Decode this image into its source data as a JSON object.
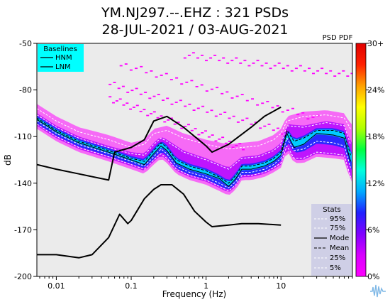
{
  "chart_data": {
    "type": "heatmap",
    "title_line1": "YM.NJ297.--.EHZ : 321 PSDs",
    "title_line2": "28-JUL-2021 / 03-AUG-2021",
    "xlabel": "Frequency (Hz)",
    "ylabel": "dB",
    "xscale": "log",
    "xlim": [
      0.0055,
      90
    ],
    "ylim": [
      -200,
      -50
    ],
    "xticks": [
      0.01,
      0.1,
      1,
      10
    ],
    "xtick_labels": [
      "0.01",
      "0.1",
      "1",
      "10"
    ],
    "yticks": [
      -200,
      -170,
      -140,
      -110,
      -80,
      -50
    ],
    "ytick_labels": [
      "-200",
      "-170",
      "-140",
      "-110",
      "-80",
      "-50"
    ],
    "baselines_legend": {
      "title": "Baselines",
      "entries": [
        "HNM",
        "LNM"
      ],
      "placement": "top-left",
      "background": "#00ffff"
    },
    "stats_legend": {
      "title": "Stats",
      "entries": [
        "95%",
        "75%",
        "Mode",
        "Mean",
        "25%",
        "5%"
      ],
      "placement": "bottom-right",
      "background": "#cfcfe6"
    },
    "colorbar": {
      "label": "PSD PDF",
      "ticks": [
        "0%",
        "6%",
        "12%",
        "18%",
        "24%",
        "30+"
      ],
      "min": 0,
      "max": 30,
      "colors": [
        "#ff00ff",
        "#d800ff",
        "#8000ff",
        "#2020ff",
        "#00aaff",
        "#00ffdd",
        "#00ff40",
        "#b0ff00",
        "#ffff00",
        "#ffa000",
        "#ff2000",
        "#e00000"
      ]
    },
    "plot_background": "#ebebeb",
    "series": [
      {
        "name": "HNM",
        "color": "#000000",
        "x": [
          0.0055,
          0.01,
          0.02,
          0.05,
          0.06,
          0.1,
          0.15,
          0.2,
          0.3,
          0.5,
          1,
          1.2,
          2,
          4,
          6,
          10
        ],
        "y": [
          -128,
          -131,
          -134,
          -138,
          -120,
          -117,
          -112,
          -100,
          -97,
          -104,
          -116,
          -120,
          -115,
          -104,
          -97,
          -91
        ]
      },
      {
        "name": "LNM",
        "color": "#000000",
        "x": [
          0.0055,
          0.01,
          0.02,
          0.03,
          0.05,
          0.07,
          0.09,
          0.1,
          0.15,
          0.2,
          0.25,
          0.35,
          0.5,
          0.7,
          1,
          1.2,
          2,
          3,
          5,
          10
        ],
        "y": [
          -186,
          -186,
          -188,
          -186,
          -175,
          -160,
          -166,
          -164,
          -150,
          -144,
          -141,
          -141,
          -147,
          -158,
          -165,
          -168,
          -167,
          -166,
          -166,
          -167
        ]
      },
      {
        "name": "Mode",
        "x": [
          0.0055,
          0.01,
          0.02,
          0.05,
          0.1,
          0.15,
          0.2,
          0.25,
          0.3,
          0.4,
          0.6,
          1,
          1.5,
          2,
          2.5,
          3,
          4,
          6,
          8,
          10,
          12,
          15,
          20,
          30,
          50,
          70,
          85
        ],
        "y": [
          -99,
          -107,
          -114,
          -120,
          -125,
          -128,
          -121,
          -116,
          -119,
          -127,
          -131,
          -134,
          -137,
          -142,
          -137,
          -131,
          -131,
          -129,
          -126,
          -122,
          -108,
          -117,
          -115,
          -108,
          -109,
          -111,
          -126
        ]
      },
      {
        "name": "Mean",
        "x": [
          0.0055,
          0.01,
          0.02,
          0.05,
          0.1,
          0.15,
          0.2,
          0.25,
          0.3,
          0.4,
          0.6,
          1,
          1.5,
          2,
          2.5,
          3,
          4,
          6,
          8,
          10,
          12,
          15,
          20,
          30,
          50,
          70,
          85
        ],
        "y": [
          -98,
          -106,
          -113,
          -119,
          -124,
          -126,
          -119,
          -114,
          -117,
          -125,
          -129,
          -132,
          -136,
          -140,
          -135,
          -129,
          -129,
          -127,
          -124,
          -120,
          -106,
          -113,
          -111,
          -106,
          -106,
          -108,
          -122
        ]
      },
      {
        "name": "95%",
        "x": [
          0.0055,
          0.01,
          0.02,
          0.05,
          0.1,
          0.15,
          0.2,
          0.3,
          0.5,
          1,
          2,
          3,
          5,
          8,
          10,
          12,
          20,
          40,
          70,
          85
        ],
        "y": [
          -92,
          -100,
          -107,
          -112,
          -117,
          -115,
          -108,
          -106,
          -111,
          -115,
          -118,
          -117,
          -116,
          -112,
          -108,
          -100,
          -97,
          -96,
          -98,
          -105
        ]
      },
      {
        "name": "75%",
        "x": [
          0.0055,
          0.01,
          0.02,
          0.05,
          0.1,
          0.15,
          0.2,
          0.25,
          0.3,
          0.5,
          1,
          2,
          3,
          5,
          8,
          10,
          12,
          20,
          40,
          70,
          85
        ],
        "y": [
          -96,
          -104,
          -111,
          -117,
          -121,
          -122,
          -115,
          -111,
          -113,
          -120,
          -125,
          -131,
          -124,
          -123,
          -119,
          -115,
          -103,
          -104,
          -101,
          -103,
          -115
        ]
      },
      {
        "name": "25%",
        "x": [
          0.0055,
          0.01,
          0.02,
          0.05,
          0.1,
          0.15,
          0.2,
          0.25,
          0.3,
          0.4,
          0.6,
          1,
          1.5,
          2,
          2.5,
          3,
          4,
          6,
          8,
          10,
          12,
          15,
          20,
          30,
          50,
          70,
          85
        ],
        "y": [
          -100,
          -108,
          -115,
          -121,
          -126,
          -129,
          -123,
          -118,
          -121,
          -129,
          -133,
          -136,
          -140,
          -143,
          -139,
          -133,
          -133,
          -131,
          -128,
          -124,
          -111,
          -119,
          -118,
          -113,
          -114,
          -116,
          -130
        ]
      },
      {
        "name": "5%",
        "x": [
          0.0055,
          0.01,
          0.02,
          0.05,
          0.1,
          0.15,
          0.2,
          0.25,
          0.3,
          0.4,
          0.6,
          1,
          1.5,
          2,
          2.5,
          3,
          4,
          6,
          8,
          10,
          12,
          15,
          20,
          30,
          50,
          70,
          85
        ],
        "y": [
          -102,
          -110,
          -117,
          -123,
          -128,
          -131,
          -125,
          -121,
          -124,
          -131,
          -135,
          -138,
          -142,
          -145,
          -141,
          -135,
          -135,
          -133,
          -130,
          -127,
          -116,
          -124,
          -124,
          -120,
          -121,
          -122,
          -136
        ]
      }
    ]
  }
}
